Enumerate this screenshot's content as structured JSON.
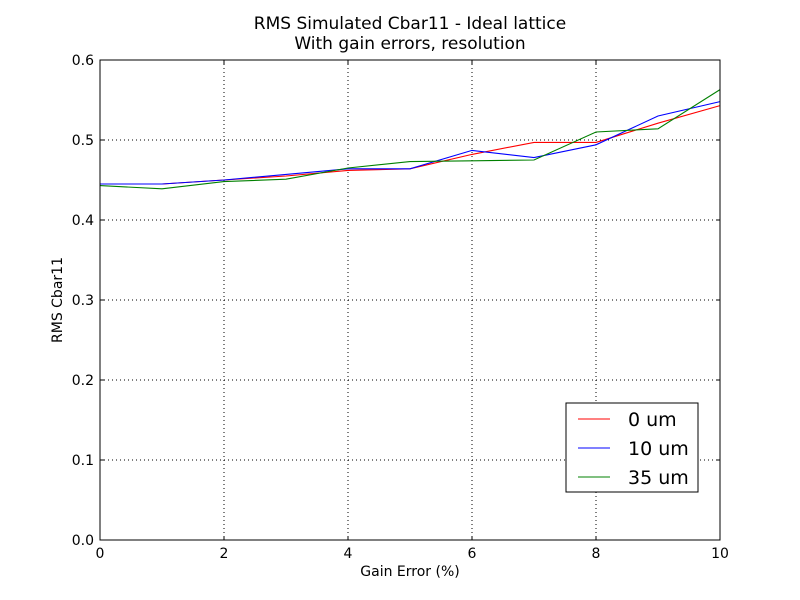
{
  "chart_data": {
    "type": "line",
    "title": "RMS Simulated Cbar11 - Ideal lattice",
    "subtitle": "With gain errors, resolution",
    "xlabel": "Gain Error (%)",
    "ylabel": "RMS Cbar11",
    "xlim": [
      0,
      10
    ],
    "ylim": [
      0,
      0.6
    ],
    "xticks": [
      0,
      2,
      4,
      6,
      8,
      10
    ],
    "xtick_labels": [
      "0",
      "2",
      "4",
      "6",
      "8",
      "10"
    ],
    "yticks": [
      0.0,
      0.1,
      0.2,
      0.3,
      0.4,
      0.5,
      0.6
    ],
    "ytick_labels": [
      "0.0",
      "0.1",
      "0.2",
      "0.3",
      "0.4",
      "0.5",
      "0.6"
    ],
    "grid": true,
    "legend_position": "lower-right",
    "x": [
      0,
      1,
      2,
      3,
      4,
      5,
      6,
      7,
      8,
      9,
      10
    ],
    "series": [
      {
        "name": "0 um",
        "color": "#ff0000",
        "values": [
          0.445,
          0.445,
          0.45,
          0.455,
          0.462,
          0.464,
          0.482,
          0.497,
          0.497,
          0.521,
          0.543
        ]
      },
      {
        "name": "10 um",
        "color": "#0000ff",
        "values": [
          0.445,
          0.445,
          0.45,
          0.457,
          0.464,
          0.464,
          0.487,
          0.478,
          0.494,
          0.53,
          0.548
        ]
      },
      {
        "name": "35 um",
        "color": "#008000",
        "values": [
          0.443,
          0.439,
          0.448,
          0.451,
          0.465,
          0.473,
          0.474,
          0.475,
          0.51,
          0.514,
          0.563
        ]
      }
    ]
  }
}
